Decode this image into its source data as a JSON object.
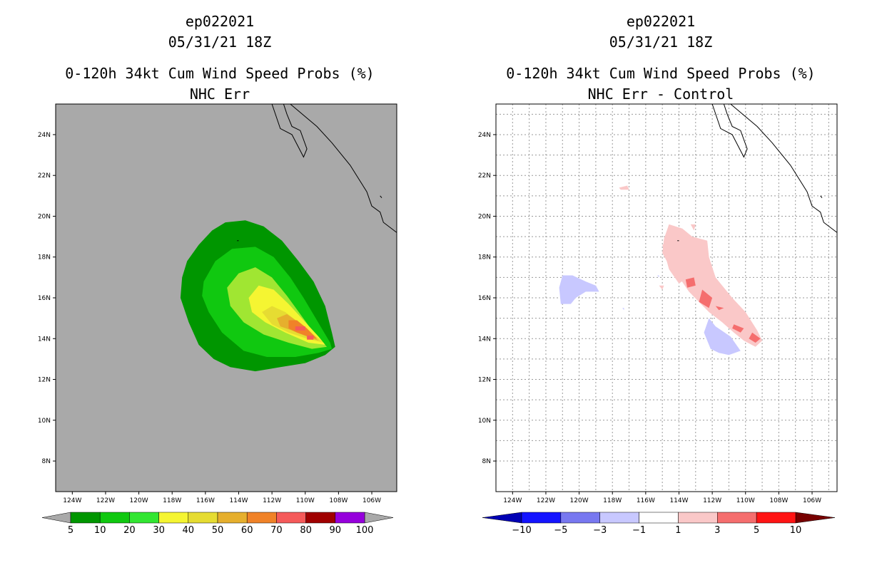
{
  "colors": {
    "land": "#a9a9a9",
    "green_dark": "#009600",
    "green": "#10c810",
    "green_light": "#32e632",
    "lime": "#a0e632",
    "yellow": "#f5f532",
    "gold": "#e6dc32",
    "orange_gold": "#e6af2d",
    "orange": "#f08228",
    "red": "#f55a5a",
    "dark_red": "#a00000",
    "purple": "#9600dc",
    "coast": "#000000",
    "grid": "#999999",
    "blue_dark": "#0000b4",
    "blue": "#1414ff",
    "blue_mid": "#7878f0",
    "blue_light": "#c8c8ff",
    "white": "#ffffff",
    "pink": "#fac8c8",
    "salmon": "#f56e6e",
    "red_bright": "#ff1414",
    "maroon": "#780000"
  },
  "chart_data": [
    {
      "type": "filled-contour-map",
      "title_lines": [
        "ep022021",
        "05/31/21 18Z",
        "0-120h 34kt Cum Wind Speed Probs (%)",
        "NHC Err"
      ],
      "lon_range": [
        -125,
        -104.5
      ],
      "lat_range": [
        6.5,
        25.5
      ],
      "x_ticks": [
        "124W",
        "122W",
        "120W",
        "118W",
        "116W",
        "114W",
        "112W",
        "110W",
        "108W",
        "106W"
      ],
      "y_ticks": [
        "24N",
        "22N",
        "20N",
        "18N",
        "16N",
        "14N",
        "12N",
        "10N",
        "8N"
      ],
      "grid": false,
      "colorbar": {
        "levels": [
          "5",
          "10",
          "20",
          "30",
          "40",
          "50",
          "60",
          "70",
          "80",
          "90",
          "100"
        ]
      },
      "contours": [
        {
          "level": 5,
          "color": "green_dark",
          "poly": [
            [
              -117.4,
              17.0
            ],
            [
              -117.1,
              17.8
            ],
            [
              -116.4,
              18.6
            ],
            [
              -115.6,
              19.3
            ],
            [
              -114.8,
              19.7
            ],
            [
              -113.6,
              19.8
            ],
            [
              -112.5,
              19.5
            ],
            [
              -111.4,
              18.8
            ],
            [
              -110.4,
              17.8
            ],
            [
              -109.5,
              16.8
            ],
            [
              -108.8,
              15.6
            ],
            [
              -108.4,
              14.3
            ],
            [
              -108.2,
              13.6
            ],
            [
              -108.8,
              13.2
            ],
            [
              -110.0,
              12.8
            ],
            [
              -111.5,
              12.6
            ],
            [
              -113.0,
              12.4
            ],
            [
              -114.5,
              12.6
            ],
            [
              -115.5,
              13.0
            ],
            [
              -116.4,
              13.7
            ],
            [
              -117.0,
              14.8
            ],
            [
              -117.5,
              16.0
            ]
          ]
        },
        {
          "level": 10,
          "color": "green",
          "poly": [
            [
              -116.1,
              16.8
            ],
            [
              -115.4,
              17.8
            ],
            [
              -114.4,
              18.4
            ],
            [
              -113.0,
              18.5
            ],
            [
              -111.9,
              18.0
            ],
            [
              -110.9,
              17.0
            ],
            [
              -110.1,
              16.0
            ],
            [
              -109.3,
              14.9
            ],
            [
              -108.5,
              13.8
            ],
            [
              -108.4,
              13.5
            ],
            [
              -109.2,
              13.3
            ],
            [
              -110.6,
              13.1
            ],
            [
              -112.3,
              13.1
            ],
            [
              -113.7,
              13.4
            ],
            [
              -115.0,
              14.3
            ],
            [
              -115.8,
              15.3
            ],
            [
              -116.2,
              16.1
            ]
          ]
        },
        {
          "level": 20,
          "color": "lime",
          "poly": [
            [
              -114.7,
              16.5
            ],
            [
              -114.0,
              17.2
            ],
            [
              -113.0,
              17.5
            ],
            [
              -112.0,
              17.0
            ],
            [
              -111.1,
              16.1
            ],
            [
              -110.3,
              15.2
            ],
            [
              -109.5,
              14.3
            ],
            [
              -108.7,
              13.6
            ],
            [
              -109.6,
              13.5
            ],
            [
              -111.0,
              13.8
            ],
            [
              -112.5,
              14.2
            ],
            [
              -113.7,
              14.8
            ],
            [
              -114.5,
              15.6
            ]
          ]
        },
        {
          "level": 30,
          "color": "yellow",
          "poly": [
            [
              -113.4,
              16.0
            ],
            [
              -112.8,
              16.6
            ],
            [
              -111.9,
              16.4
            ],
            [
              -111.0,
              15.7
            ],
            [
              -110.1,
              14.9
            ],
            [
              -109.2,
              14.1
            ],
            [
              -108.8,
              13.7
            ],
            [
              -109.8,
              13.8
            ],
            [
              -111.2,
              14.3
            ],
            [
              -112.4,
              14.8
            ],
            [
              -113.2,
              15.3
            ]
          ]
        },
        {
          "level": 40,
          "color": "gold",
          "poly": [
            [
              -112.6,
              15.3
            ],
            [
              -112.0,
              15.6
            ],
            [
              -111.2,
              15.3
            ],
            [
              -110.4,
              14.8
            ],
            [
              -109.5,
              14.2
            ],
            [
              -108.9,
              13.8
            ],
            [
              -109.9,
              14.0
            ],
            [
              -111.0,
              14.3
            ],
            [
              -112.0,
              14.7
            ]
          ]
        },
        {
          "level": 50,
          "color": "orange_gold",
          "poly": [
            [
              -111.7,
              15.0
            ],
            [
              -111.1,
              15.2
            ],
            [
              -110.4,
              14.8
            ],
            [
              -109.7,
              14.3
            ],
            [
              -109.2,
              13.9
            ],
            [
              -109.9,
              14.1
            ],
            [
              -110.8,
              14.4
            ],
            [
              -111.5,
              14.6
            ]
          ]
        },
        {
          "level": 60,
          "color": "orange",
          "poly": [
            [
              -111.0,
              14.9
            ],
            [
              -110.5,
              14.9
            ],
            [
              -109.9,
              14.5
            ],
            [
              -109.3,
              14.0
            ],
            [
              -109.8,
              14.1
            ],
            [
              -110.5,
              14.3
            ],
            [
              -111.0,
              14.5
            ]
          ]
        },
        {
          "level": 70,
          "color": "red",
          "poly": [
            [
              -110.6,
              14.6
            ],
            [
              -110.0,
              14.6
            ],
            [
              -110.0,
              14.4
            ],
            [
              -110.6,
              14.4
            ]
          ]
        },
        {
          "level": 70,
          "color": "red",
          "poly": [
            [
              -109.9,
              14.15
            ],
            [
              -109.5,
              14.15
            ],
            [
              -109.5,
              13.95
            ],
            [
              -109.9,
              13.95
            ]
          ]
        }
      ]
    },
    {
      "type": "filled-contour-map",
      "title_lines": [
        "ep022021",
        "05/31/21 18Z",
        "0-120h 34kt Cum Wind Speed Probs (%)",
        "NHC Err - Control"
      ],
      "lon_range": [
        -125,
        -104.5
      ],
      "lat_range": [
        6.5,
        25.5
      ],
      "x_ticks": [
        "124W",
        "122W",
        "120W",
        "118W",
        "116W",
        "114W",
        "112W",
        "110W",
        "108W",
        "106W"
      ],
      "y_ticks": [
        "24N",
        "22N",
        "20N",
        "18N",
        "16N",
        "14N",
        "12N",
        "10N",
        "8N"
      ],
      "grid": true,
      "colorbar": {
        "levels": [
          "-10",
          "-5",
          "-3",
          "-1",
          "1",
          "3",
          "5",
          "10"
        ]
      },
      "contours": [
        {
          "level": 1,
          "color": "pink",
          "poly": [
            [
              -114.6,
              19.6
            ],
            [
              -113.8,
              19.4
            ],
            [
              -113.2,
              19.0
            ],
            [
              -112.3,
              18.8
            ],
            [
              -112.2,
              18.0
            ],
            [
              -111.8,
              17.0
            ],
            [
              -110.8,
              16.0
            ],
            [
              -110.0,
              15.3
            ],
            [
              -109.3,
              14.4
            ],
            [
              -109.0,
              13.9
            ],
            [
              -109.4,
              13.6
            ],
            [
              -110.1,
              13.9
            ],
            [
              -110.7,
              14.3
            ],
            [
              -111.4,
              14.8
            ],
            [
              -112.2,
              15.3
            ],
            [
              -112.8,
              15.8
            ],
            [
              -113.4,
              16.3
            ],
            [
              -113.9,
              16.9
            ],
            [
              -114.6,
              17.6
            ],
            [
              -115.0,
              18.2
            ],
            [
              -114.9,
              18.9
            ]
          ]
        },
        {
          "level": 1,
          "color": "pink",
          "poly": [
            [
              -115.0,
              18.6
            ],
            [
              -114.5,
              18.8
            ],
            [
              -113.9,
              18.0
            ],
            [
              -113.5,
              17.0
            ],
            [
              -114.0,
              16.7
            ],
            [
              -114.6,
              17.4
            ]
          ]
        },
        {
          "level": 1,
          "color": "pink",
          "poly": [
            [
              -117.6,
              21.4
            ],
            [
              -117.1,
              21.5
            ],
            [
              -117.0,
              21.3
            ],
            [
              -117.5,
              21.3
            ]
          ]
        },
        {
          "level": 1,
          "color": "pink",
          "poly": [
            [
              -113.3,
              19.6
            ],
            [
              -113.0,
              19.6
            ],
            [
              -113.1,
              19.3
            ]
          ]
        },
        {
          "level": 1,
          "color": "pink",
          "poly": [
            [
              -115.2,
              16.6
            ],
            [
              -114.9,
              16.6
            ],
            [
              -115.0,
              16.4
            ]
          ]
        },
        {
          "level": 3,
          "color": "salmon",
          "poly": [
            [
              -113.6,
              16.9
            ],
            [
              -113.1,
              17.0
            ],
            [
              -113.0,
              16.6
            ],
            [
              -113.5,
              16.5
            ]
          ]
        },
        {
          "level": 3,
          "color": "salmon",
          "poly": [
            [
              -112.6,
              16.4
            ],
            [
              -112.0,
              16.0
            ],
            [
              -112.2,
              15.5
            ],
            [
              -112.8,
              15.8
            ]
          ]
        },
        {
          "level": 3,
          "color": "salmon",
          "poly": [
            [
              -111.8,
              15.6
            ],
            [
              -111.3,
              15.5
            ],
            [
              -111.6,
              15.4
            ]
          ]
        },
        {
          "level": 3,
          "color": "salmon",
          "poly": [
            [
              -110.7,
              14.7
            ],
            [
              -110.1,
              14.5
            ],
            [
              -110.3,
              14.3
            ],
            [
              -110.8,
              14.5
            ]
          ]
        },
        {
          "level": 3,
          "color": "salmon",
          "poly": [
            [
              -109.6,
              14.3
            ],
            [
              -109.1,
              14.0
            ],
            [
              -109.4,
              13.8
            ],
            [
              -109.8,
              14.0
            ]
          ]
        },
        {
          "level": -1,
          "color": "blue_light",
          "poly": [
            [
              -121.1,
              15.7
            ],
            [
              -121.2,
              16.5
            ],
            [
              -121.0,
              17.1
            ],
            [
              -120.4,
              17.1
            ],
            [
              -119.6,
              16.8
            ],
            [
              -119.0,
              16.6
            ],
            [
              -118.8,
              16.3
            ],
            [
              -119.6,
              16.3
            ],
            [
              -120.2,
              16.0
            ],
            [
              -120.5,
              15.7
            ]
          ]
        },
        {
          "level": -1,
          "color": "blue_light",
          "poly": [
            [
              -112.5,
              14.3
            ],
            [
              -112.2,
              15.0
            ],
            [
              -111.8,
              14.6
            ],
            [
              -110.9,
              14.1
            ],
            [
              -110.3,
              13.4
            ],
            [
              -111.0,
              13.2
            ],
            [
              -111.6,
              13.3
            ],
            [
              -112.1,
              13.5
            ]
          ]
        },
        {
          "level": -1,
          "color": "blue_light",
          "poly": [
            [
              -115.3,
              17.1
            ],
            [
              -115.2,
              17.1
            ],
            [
              -115.2,
              17.0
            ]
          ]
        },
        {
          "level": -1,
          "color": "blue_light",
          "poly": [
            [
              -117.4,
              15.5
            ],
            [
              -117.3,
              15.5
            ],
            [
              -117.3,
              15.4
            ]
          ]
        }
      ]
    }
  ],
  "coast": [
    [
      [
        -112.0,
        25.5
      ],
      [
        -111.5,
        24.3
      ],
      [
        -110.8,
        24.0
      ],
      [
        -110.1,
        22.9
      ],
      [
        -109.9,
        23.3
      ],
      [
        -110.3,
        24.2
      ],
      [
        -110.8,
        24.4
      ],
      [
        -111.1,
        25.0
      ],
      [
        -111.3,
        25.5
      ]
    ],
    [
      [
        -110.9,
        25.5
      ],
      [
        -109.3,
        24.4
      ],
      [
        -108.4,
        23.6
      ],
      [
        -107.3,
        22.5
      ],
      [
        -106.3,
        21.2
      ],
      [
        -106.0,
        20.5
      ],
      [
        -105.5,
        20.2
      ],
      [
        -105.3,
        19.7
      ],
      [
        -104.5,
        19.2
      ]
    ],
    [
      [
        -114.1,
        18.8
      ],
      [
        -114.0,
        18.8
      ]
    ],
    [
      [
        -105.5,
        21.0
      ],
      [
        -105.4,
        20.9
      ]
    ]
  ]
}
